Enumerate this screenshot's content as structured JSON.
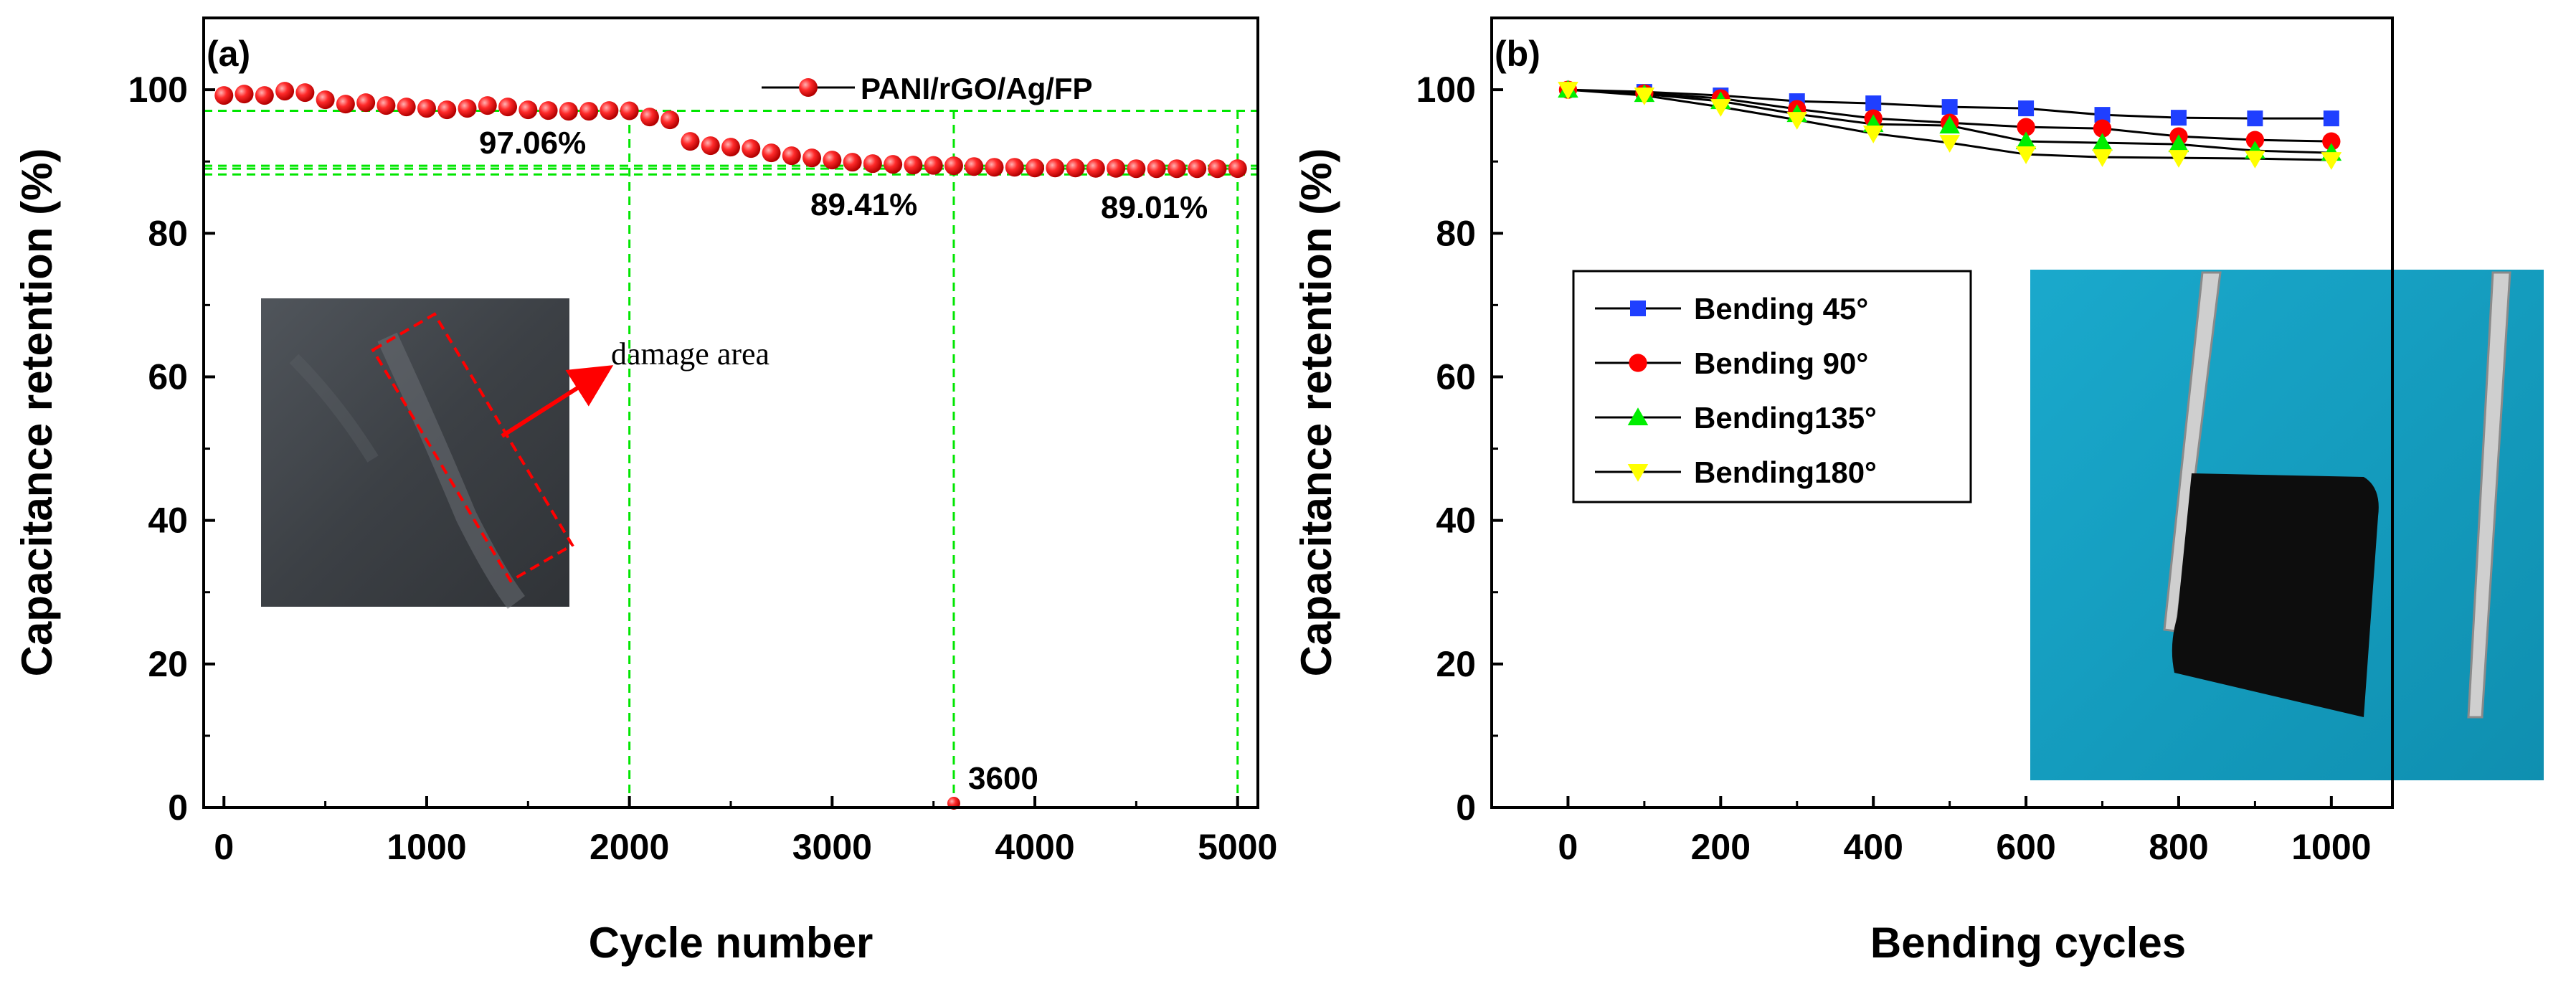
{
  "chart_data": [
    {
      "type": "scatter",
      "panel_label": "(a)",
      "xlabel": "Cycle number",
      "ylabel": "Capacitance retention (%)",
      "xlim": [
        -100,
        5100
      ],
      "ylim": [
        0,
        110
      ],
      "xticks": [
        0,
        1000,
        2000,
        3000,
        4000,
        5000
      ],
      "yticks": [
        0,
        20,
        40,
        60,
        80,
        100
      ],
      "legend": {
        "placement": "top-right",
        "entries": [
          "PANI/rGO/Ag/FP"
        ]
      },
      "series": [
        {
          "name": "PANI/rGO/Ag/FP",
          "color": "#ff0000",
          "x": [
            0,
            100,
            200,
            300,
            400,
            500,
            600,
            700,
            800,
            900,
            1000,
            1100,
            1200,
            1300,
            1400,
            1500,
            1600,
            1700,
            1800,
            1900,
            2000,
            2100,
            2200,
            2300,
            2400,
            2500,
            2600,
            2700,
            2800,
            2900,
            3000,
            3100,
            3200,
            3300,
            3400,
            3500,
            3600,
            3700,
            3800,
            3900,
            4000,
            4100,
            4200,
            4300,
            4400,
            4500,
            4600,
            4700,
            4800,
            4900,
            5000
          ],
          "y": [
            99.2,
            99.4,
            99.2,
            99.8,
            99.6,
            98.6,
            98.0,
            98.2,
            97.8,
            97.6,
            97.4,
            97.2,
            97.4,
            97.8,
            97.6,
            97.2,
            97.1,
            97.0,
            97.0,
            97.1,
            97.06,
            96.2,
            95.8,
            92.8,
            92.2,
            92.0,
            91.8,
            91.2,
            90.8,
            90.5,
            90.2,
            89.9,
            89.7,
            89.6,
            89.5,
            89.45,
            89.41,
            89.3,
            89.2,
            89.2,
            89.1,
            89.1,
            89.1,
            89.05,
            89.05,
            89.0,
            89.0,
            89.0,
            89.0,
            89.0,
            89.01
          ]
        }
      ],
      "outlier_point": {
        "x": 3600,
        "y": 0.6,
        "label": "3600"
      },
      "annotations": [
        {
          "text": "97.06%",
          "x": 2000,
          "y": 97.06
        },
        {
          "text": "89.41%",
          "x": 3600,
          "y": 89.41
        },
        {
          "text": "89.01%",
          "x": 5000,
          "y": 89.01
        }
      ],
      "reference_lines": {
        "horizontal_y": [
          97.06,
          89.41,
          89.01,
          88.2
        ],
        "vertical_x": [
          2000,
          3600,
          5000
        ]
      },
      "inset": {
        "label": "damage area"
      }
    },
    {
      "type": "line",
      "panel_label": "(b)",
      "xlabel": "Bending cycles",
      "ylabel": "Capacitance retention (%)",
      "xlim": [
        -100,
        1080
      ],
      "ylim": [
        0,
        110
      ],
      "xticks": [
        0,
        200,
        400,
        600,
        800,
        1000
      ],
      "yticks": [
        0,
        20,
        40,
        60,
        80,
        100
      ],
      "x": [
        0,
        100,
        200,
        300,
        400,
        500,
        600,
        700,
        800,
        900,
        1000
      ],
      "legend": {
        "placement": "center-left"
      },
      "series": [
        {
          "name": "Bending 45°",
          "marker": "square",
          "color": "#1f3fff",
          "values": [
            100,
            99.7,
            99.2,
            98.4,
            98.1,
            97.6,
            97.4,
            96.5,
            96.1,
            96.0,
            96.0
          ]
        },
        {
          "name": "Bending 90°",
          "marker": "circle",
          "color": "#ff0000",
          "values": [
            100,
            99.5,
            98.8,
            97.3,
            96.0,
            95.4,
            94.8,
            94.6,
            93.5,
            93.0,
            92.8
          ]
        },
        {
          "name": "Bending135°",
          "marker": "triangle-up",
          "color": "#00ee00",
          "values": [
            100,
            99.4,
            98.4,
            96.6,
            95.2,
            95.0,
            92.8,
            92.6,
            92.4,
            91.5,
            91.2
          ]
        },
        {
          "name": "Bending180°",
          "marker": "triangle-down",
          "color": "#ffff00",
          "values": [
            100,
            99.2,
            97.6,
            95.8,
            93.9,
            92.6,
            91.0,
            90.6,
            90.5,
            90.4,
            90.2
          ]
        }
      ]
    }
  ]
}
